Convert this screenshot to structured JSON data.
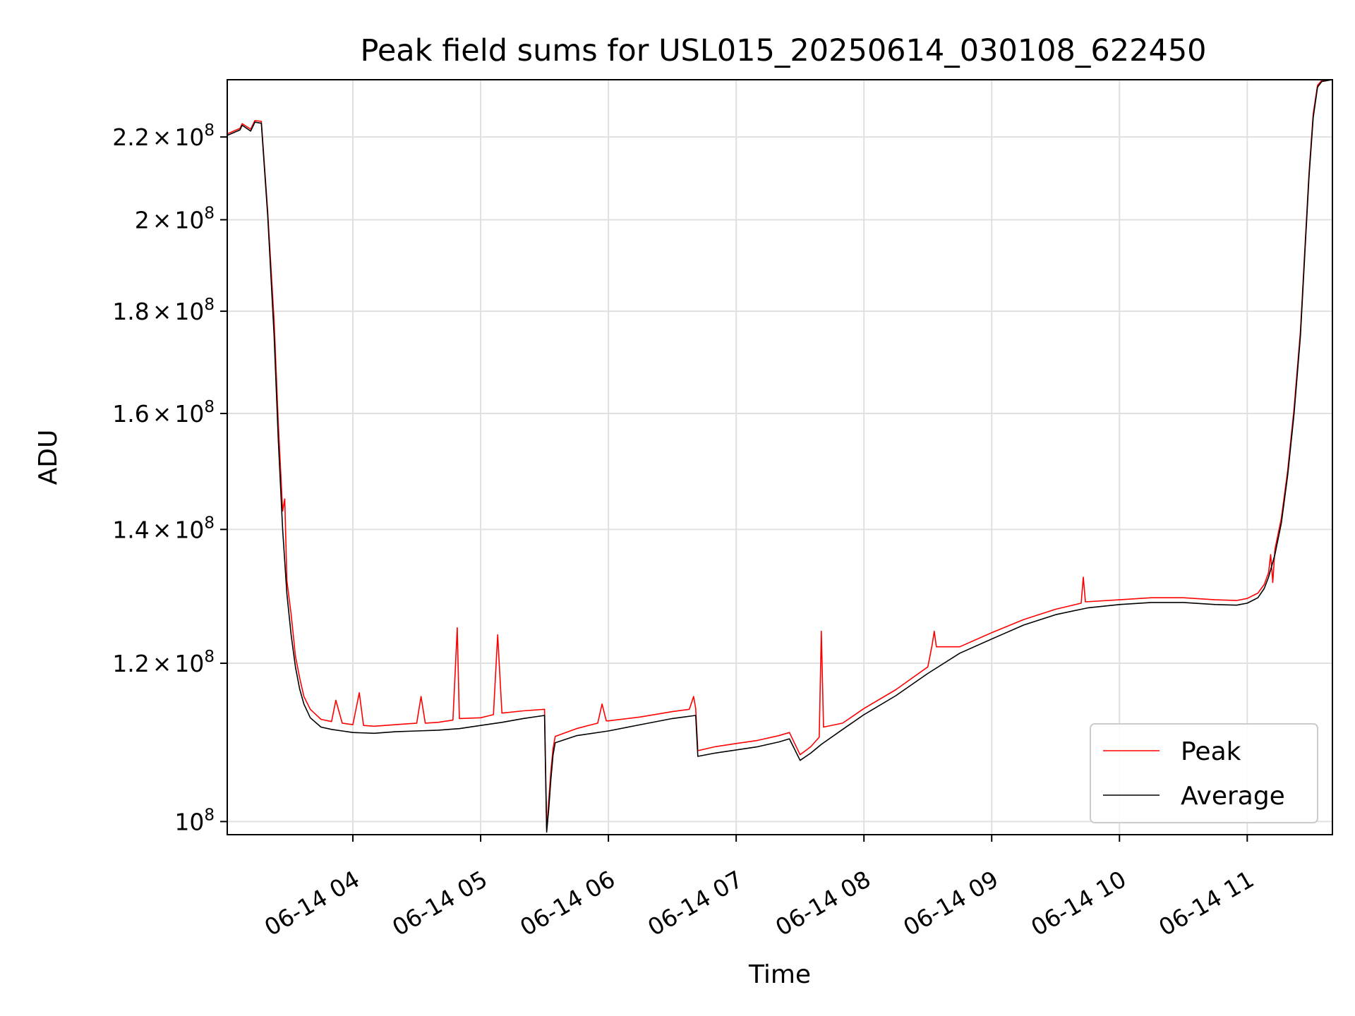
{
  "chart_data": {
    "type": "line",
    "title": "Peak field sums for USL015_20250614_030108_622450",
    "xlabel": "Time",
    "ylabel": "ADU",
    "yscale": "log",
    "xlim": [
      "2025-06-14 03:01",
      "2025-06-14 11:40"
    ],
    "ylim": [
      98500000,
      235000000
    ],
    "grid": true,
    "legend_position": "lower-right",
    "x_ticks": [
      "06-14 04",
      "06-14 05",
      "06-14 06",
      "06-14 07",
      "06-14 08",
      "06-14 09",
      "06-14 10",
      "06-14 11"
    ],
    "y_ticks": [
      {
        "value": 100000000,
        "mantissa": "",
        "times": "",
        "base": "10",
        "exp": "8"
      },
      {
        "value": 120000000,
        "mantissa": "1.2",
        "times": "×",
        "base": "10",
        "exp": "8"
      },
      {
        "value": 140000000,
        "mantissa": "1.4",
        "times": "×",
        "base": "10",
        "exp": "8"
      },
      {
        "value": 160000000,
        "mantissa": "1.6",
        "times": "×",
        "base": "10",
        "exp": "8"
      },
      {
        "value": 180000000,
        "mantissa": "1.8",
        "times": "×",
        "base": "10",
        "exp": "8"
      },
      {
        "value": 200000000,
        "mantissa": "2",
        "times": "×",
        "base": "10",
        "exp": "8"
      },
      {
        "value": 220000000,
        "mantissa": "2.2",
        "times": "×",
        "base": "10",
        "exp": "8"
      }
    ],
    "series": [
      {
        "name": "Average",
        "color": "#000000",
        "x": [
          "2025-06-14 03:01",
          "2025-06-14 03:07",
          "2025-06-14 03:08",
          "2025-06-14 03:12",
          "2025-06-14 03:14",
          "2025-06-14 03:17",
          "2025-06-14 03:20",
          "2025-06-14 03:23",
          "2025-06-14 03:25",
          "2025-06-14 03:27",
          "2025-06-14 03:29",
          "2025-06-14 03:31",
          "2025-06-14 03:33",
          "2025-06-14 03:35",
          "2025-06-14 03:37",
          "2025-06-14 03:40",
          "2025-06-14 03:45",
          "2025-06-14 03:50",
          "2025-06-14 03:55",
          "2025-06-14 04:00",
          "2025-06-14 04:10",
          "2025-06-14 04:20",
          "2025-06-14 04:30",
          "2025-06-14 04:40",
          "2025-06-14 04:50",
          "2025-06-14 05:00",
          "2025-06-14 05:10",
          "2025-06-14 05:20",
          "2025-06-14 05:30",
          "2025-06-14 05:31",
          "2025-06-14 05:32",
          "2025-06-14 05:33",
          "2025-06-14 05:34",
          "2025-06-14 05:35",
          "2025-06-14 05:45",
          "2025-06-14 06:00",
          "2025-06-14 06:15",
          "2025-06-14 06:30",
          "2025-06-14 06:41",
          "2025-06-14 06:42",
          "2025-06-14 06:50",
          "2025-06-14 07:00",
          "2025-06-14 07:10",
          "2025-06-14 07:20",
          "2025-06-14 07:25",
          "2025-06-14 07:30",
          "2025-06-14 07:35",
          "2025-06-14 07:40",
          "2025-06-14 07:50",
          "2025-06-14 08:00",
          "2025-06-14 08:15",
          "2025-06-14 08:30",
          "2025-06-14 08:45",
          "2025-06-14 09:00",
          "2025-06-14 09:15",
          "2025-06-14 09:30",
          "2025-06-14 09:45",
          "2025-06-14 10:00",
          "2025-06-14 10:15",
          "2025-06-14 10:30",
          "2025-06-14 10:45",
          "2025-06-14 10:55",
          "2025-06-14 11:00",
          "2025-06-14 11:05",
          "2025-06-14 11:08",
          "2025-06-14 11:10",
          "2025-06-14 11:13",
          "2025-06-14 11:16",
          "2025-06-14 11:19",
          "2025-06-14 11:22",
          "2025-06-14 11:25",
          "2025-06-14 11:27",
          "2025-06-14 11:29",
          "2025-06-14 11:31",
          "2025-06-14 11:33",
          "2025-06-14 11:35",
          "2025-06-14 11:38",
          "2025-06-14 11:40"
        ],
        "y": [
          220400000,
          221800000,
          223000000,
          221500000,
          223800000,
          223500000,
          201000000,
          175000000,
          155000000,
          140000000,
          130000000,
          124000000,
          119500000,
          116500000,
          114500000,
          112700000,
          111500000,
          111200000,
          111000000,
          110800000,
          110700000,
          110900000,
          111000000,
          111100000,
          111300000,
          111700000,
          112100000,
          112600000,
          113000000,
          98800000,
          101500000,
          105000000,
          108000000,
          109500000,
          110400000,
          111000000,
          111800000,
          112600000,
          113000000,
          107800000,
          108200000,
          108600000,
          109000000,
          109600000,
          110000000,
          107300000,
          108200000,
          109300000,
          111200000,
          113100000,
          115600000,
          118600000,
          121400000,
          123400000,
          125400000,
          126900000,
          127900000,
          128400000,
          128700000,
          128700000,
          128400000,
          128300000,
          128600000,
          129400000,
          130800000,
          132500000,
          136000000,
          141000000,
          149000000,
          160000000,
          175000000,
          192000000,
          210000000,
          225000000,
          233000000,
          234500000,
          234800000,
          235000000
        ]
      },
      {
        "name": "Peak",
        "color": "#ff0000",
        "x": [
          "2025-06-14 03:01",
          "2025-06-14 03:07",
          "2025-06-14 03:08",
          "2025-06-14 03:12",
          "2025-06-14 03:14",
          "2025-06-14 03:17",
          "2025-06-14 03:20",
          "2025-06-14 03:23",
          "2025-06-14 03:25",
          "2025-06-14 03:27",
          "2025-06-14 03:28",
          "2025-06-14 03:29",
          "2025-06-14 03:31",
          "2025-06-14 03:33",
          "2025-06-14 03:35",
          "2025-06-14 03:37",
          "2025-06-14 03:40",
          "2025-06-14 03:45",
          "2025-06-14 03:50",
          "2025-06-14 03:52",
          "2025-06-14 03:55",
          "2025-06-14 04:00",
          "2025-06-14 04:03",
          "2025-06-14 04:05",
          "2025-06-14 04:10",
          "2025-06-14 04:20",
          "2025-06-14 04:30",
          "2025-06-14 04:32",
          "2025-06-14 04:34",
          "2025-06-14 04:40",
          "2025-06-14 04:47",
          "2025-06-14 04:49",
          "2025-06-14 04:50",
          "2025-06-14 05:00",
          "2025-06-14 05:06",
          "2025-06-14 05:08",
          "2025-06-14 05:10",
          "2025-06-14 05:20",
          "2025-06-14 05:30",
          "2025-06-14 05:31",
          "2025-06-14 05:32",
          "2025-06-14 05:33",
          "2025-06-14 05:34",
          "2025-06-14 05:35",
          "2025-06-14 05:45",
          "2025-06-14 05:55",
          "2025-06-14 05:57",
          "2025-06-14 05:59",
          "2025-06-14 06:00",
          "2025-06-14 06:15",
          "2025-06-14 06:30",
          "2025-06-14 06:38",
          "2025-06-14 06:40",
          "2025-06-14 06:41",
          "2025-06-14 06:42",
          "2025-06-14 06:50",
          "2025-06-14 07:00",
          "2025-06-14 07:10",
          "2025-06-14 07:20",
          "2025-06-14 07:25",
          "2025-06-14 07:30",
          "2025-06-14 07:35",
          "2025-06-14 07:39",
          "2025-06-14 07:40",
          "2025-06-14 07:41",
          "2025-06-14 07:50",
          "2025-06-14 08:00",
          "2025-06-14 08:15",
          "2025-06-14 08:30",
          "2025-06-14 08:32",
          "2025-06-14 08:33",
          "2025-06-14 08:34",
          "2025-06-14 08:45",
          "2025-06-14 09:00",
          "2025-06-14 09:15",
          "2025-06-14 09:30",
          "2025-06-14 09:42",
          "2025-06-14 09:43",
          "2025-06-14 09:44",
          "2025-06-14 10:00",
          "2025-06-14 10:15",
          "2025-06-14 10:30",
          "2025-06-14 10:45",
          "2025-06-14 10:55",
          "2025-06-14 11:00",
          "2025-06-14 11:05",
          "2025-06-14 11:08",
          "2025-06-14 11:10",
          "2025-06-14 11:11",
          "2025-06-14 11:12",
          "2025-06-14 11:13",
          "2025-06-14 11:16",
          "2025-06-14 11:19",
          "2025-06-14 11:22",
          "2025-06-14 11:25",
          "2025-06-14 11:27",
          "2025-06-14 11:29",
          "2025-06-14 11:31",
          "2025-06-14 11:33",
          "2025-06-14 11:35",
          "2025-06-14 11:38",
          "2025-06-14 11:40"
        ],
        "y": [
          220800000,
          222200000,
          223400000,
          222000000,
          224200000,
          224000000,
          202000000,
          178000000,
          158000000,
          143000000,
          145000000,
          132000000,
          127000000,
          121000000,
          118000000,
          115500000,
          113800000,
          112500000,
          112200000,
          115000000,
          112000000,
          111800000,
          116000000,
          111700000,
          111600000,
          111800000,
          112000000,
          115500000,
          112000000,
          112100000,
          112400000,
          125000000,
          112600000,
          112700000,
          113100000,
          124000000,
          113300000,
          113600000,
          113800000,
          99200000,
          102500000,
          106000000,
          108800000,
          110300000,
          111300000,
          112000000,
          114500000,
          112300000,
          112300000,
          112800000,
          113500000,
          113800000,
          115500000,
          113900000,
          108500000,
          109000000,
          109400000,
          109800000,
          110400000,
          110800000,
          108000000,
          109000000,
          110200000,
          124500000,
          111500000,
          112000000,
          113900000,
          116400000,
          119500000,
          122500000,
          124500000,
          122300000,
          122300000,
          124300000,
          126200000,
          127700000,
          128600000,
          132500000,
          128800000,
          129100000,
          129400000,
          129400000,
          129100000,
          129000000,
          129300000,
          130100000,
          131400000,
          133200000,
          136000000,
          131700000,
          136800000,
          141800000,
          149800000,
          161000000,
          176000000,
          193000000,
          211000000,
          226000000,
          233500000,
          234800000,
          235000000,
          235000000
        ]
      }
    ]
  }
}
